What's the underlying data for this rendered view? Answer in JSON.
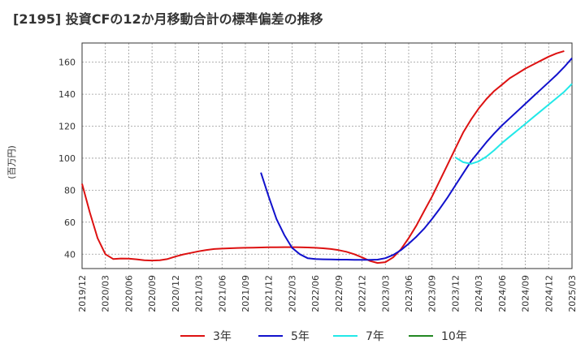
{
  "chart_data": {
    "type": "line",
    "title": "[2195]  投資CFの12か月移動合計の標準偏差の推移",
    "ylabel": "(百万円)",
    "xlabel": "",
    "ylim": [
      31,
      172
    ],
    "yticks": [
      40,
      60,
      80,
      100,
      120,
      140,
      160
    ],
    "xticks": [
      "2019/12",
      "2020/03",
      "2020/06",
      "2020/09",
      "2020/12",
      "2021/03",
      "2021/06",
      "2021/09",
      "2021/12",
      "2022/03",
      "2022/06",
      "2022/09",
      "2022/12",
      "2023/03",
      "2023/06",
      "2023/09",
      "2023/12",
      "2024/03",
      "2024/06",
      "2024/09",
      "2024/12",
      "2025/03"
    ],
    "grid": true,
    "legend_position": "bottom",
    "series": [
      {
        "name": "3年",
        "color": "#dd1111",
        "values": [
          [
            "2019/12",
            84
          ],
          [
            "2020/01",
            66
          ],
          [
            "2020/02",
            50
          ],
          [
            "2020/03",
            40
          ],
          [
            "2020/04",
            37
          ],
          [
            "2020/05",
            37.3
          ],
          [
            "2020/06",
            37.2
          ],
          [
            "2020/07",
            36.8
          ],
          [
            "2020/08",
            36.2
          ],
          [
            "2020/09",
            36
          ],
          [
            "2020/10",
            36.2
          ],
          [
            "2020/11",
            37
          ],
          [
            "2020/12",
            38.5
          ],
          [
            "2021/01",
            39.8
          ],
          [
            "2021/02",
            40.8
          ],
          [
            "2021/03",
            41.8
          ],
          [
            "2021/04",
            42.6
          ],
          [
            "2021/05",
            43.2
          ],
          [
            "2021/06",
            43.5
          ],
          [
            "2021/07",
            43.7
          ],
          [
            "2021/08",
            43.9
          ],
          [
            "2021/09",
            44
          ],
          [
            "2021/10",
            44.1
          ],
          [
            "2021/11",
            44.2
          ],
          [
            "2021/12",
            44.3
          ],
          [
            "2022/01",
            44.3
          ],
          [
            "2022/02",
            44.4
          ],
          [
            "2022/03",
            44.4
          ],
          [
            "2022/04",
            44.3
          ],
          [
            "2022/05",
            44.2
          ],
          [
            "2022/06",
            44
          ],
          [
            "2022/07",
            43.7
          ],
          [
            "2022/08",
            43.2
          ],
          [
            "2022/09",
            42.5
          ],
          [
            "2022/10",
            41.5
          ],
          [
            "2022/11",
            40
          ],
          [
            "2022/12",
            38
          ],
          [
            "2023/01",
            35.8
          ],
          [
            "2023/02",
            34.5
          ],
          [
            "2023/03",
            35
          ],
          [
            "2023/04",
            38
          ],
          [
            "2023/05",
            43
          ],
          [
            "2023/06",
            50
          ],
          [
            "2023/07",
            58
          ],
          [
            "2023/08",
            67
          ],
          [
            "2023/09",
            76
          ],
          [
            "2023/10",
            86
          ],
          [
            "2023/11",
            96
          ],
          [
            "2023/12",
            106
          ],
          [
            "2024/01",
            116
          ],
          [
            "2024/02",
            124
          ],
          [
            "2024/03",
            131
          ],
          [
            "2024/04",
            137
          ],
          [
            "2024/05",
            142
          ],
          [
            "2024/06",
            146
          ],
          [
            "2024/07",
            150
          ],
          [
            "2024/08",
            153
          ],
          [
            "2024/09",
            156
          ],
          [
            "2024/10",
            158.5
          ],
          [
            "2024/11",
            161
          ],
          [
            "2024/12",
            163.5
          ],
          [
            "2025/01",
            165.5
          ],
          [
            "2025/02",
            167
          ]
        ]
      },
      {
        "name": "5年",
        "color": "#1111cc",
        "values": [
          [
            "2021/11",
            91
          ],
          [
            "2021/12",
            76
          ],
          [
            "2022/01",
            62
          ],
          [
            "2022/02",
            52
          ],
          [
            "2022/03",
            44
          ],
          [
            "2022/04",
            40
          ],
          [
            "2022/05",
            37.5
          ],
          [
            "2022/06",
            37
          ],
          [
            "2022/07",
            36.8
          ],
          [
            "2022/08",
            36.7
          ],
          [
            "2022/09",
            36.6
          ],
          [
            "2022/10",
            36.6
          ],
          [
            "2022/11",
            36.5
          ],
          [
            "2022/12",
            36.5
          ],
          [
            "2023/01",
            36.5
          ],
          [
            "2023/02",
            36.6
          ],
          [
            "2023/03",
            37.5
          ],
          [
            "2023/04",
            39.5
          ],
          [
            "2023/05",
            42.5
          ],
          [
            "2023/06",
            46.5
          ],
          [
            "2023/07",
            51
          ],
          [
            "2023/08",
            56
          ],
          [
            "2023/09",
            62
          ],
          [
            "2023/10",
            68.5
          ],
          [
            "2023/11",
            75.5
          ],
          [
            "2023/12",
            83
          ],
          [
            "2024/01",
            90.5
          ],
          [
            "2024/02",
            98
          ],
          [
            "2024/03",
            104
          ],
          [
            "2024/04",
            110
          ],
          [
            "2024/05",
            115.5
          ],
          [
            "2024/06",
            120.5
          ],
          [
            "2024/07",
            125
          ],
          [
            "2024/08",
            129.5
          ],
          [
            "2024/09",
            134
          ],
          [
            "2024/10",
            138.5
          ],
          [
            "2024/11",
            143
          ],
          [
            "2024/12",
            147.5
          ],
          [
            "2025/01",
            152
          ],
          [
            "2025/02",
            157
          ],
          [
            "2025/03",
            162.5
          ]
        ]
      },
      {
        "name": "7年",
        "color": "#22e8e8",
        "values": [
          [
            "2023/12",
            100.5
          ],
          [
            "2024/01",
            97.5
          ],
          [
            "2024/02",
            96.5
          ],
          [
            "2024/03",
            98
          ],
          [
            "2024/04",
            101
          ],
          [
            "2024/05",
            105
          ],
          [
            "2024/06",
            109.5
          ],
          [
            "2024/07",
            113.5
          ],
          [
            "2024/08",
            117.5
          ],
          [
            "2024/09",
            121.5
          ],
          [
            "2024/10",
            125.5
          ],
          [
            "2024/11",
            129.5
          ],
          [
            "2024/12",
            133.5
          ],
          [
            "2025/01",
            137.5
          ],
          [
            "2025/02",
            141.5
          ],
          [
            "2025/03",
            146.5
          ]
        ]
      },
      {
        "name": "10年",
        "color": "#228822",
        "values": []
      }
    ]
  }
}
